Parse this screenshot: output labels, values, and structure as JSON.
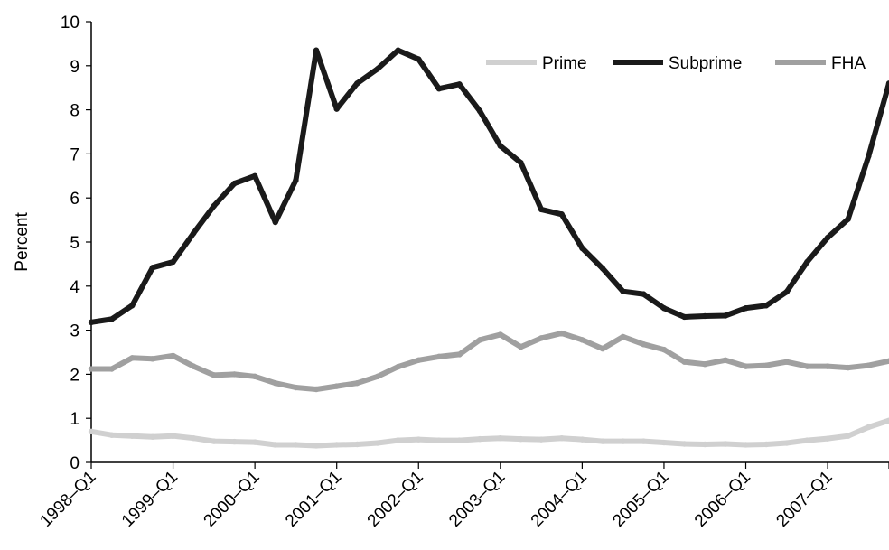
{
  "chart_data": {
    "type": "line",
    "title": "",
    "xlabel": "",
    "ylabel": "Percent",
    "ylim": [
      0,
      10
    ],
    "yticks": [
      0,
      1,
      2,
      3,
      4,
      5,
      6,
      7,
      8,
      9,
      10
    ],
    "grid": false,
    "legend_position": "top-right",
    "x": [
      "1998–Q1",
      "1998–Q2",
      "1998–Q3",
      "1998–Q4",
      "1999–Q1",
      "1999–Q2",
      "1999–Q3",
      "1999–Q4",
      "2000–Q1",
      "2000–Q2",
      "2000–Q3",
      "2000–Q4",
      "2001–Q1",
      "2001–Q2",
      "2001–Q3",
      "2001–Q4",
      "2002–Q1",
      "2002–Q2",
      "2002–Q3",
      "2002–Q4",
      "2003–Q1",
      "2003–Q2",
      "2003–Q3",
      "2003–Q4",
      "2004–Q1",
      "2004–Q2",
      "2004–Q3",
      "2004–Q4",
      "2005–Q1",
      "2005–Q2",
      "2005–Q3",
      "2005–Q4",
      "2006–Q1",
      "2006–Q2",
      "2006–Q3",
      "2006–Q4",
      "2007–Q1",
      "2007–Q2",
      "2007–Q3",
      "2007–Q4"
    ],
    "xtick_labels": [
      "1998–Q1",
      "1999–Q1",
      "2000–Q1",
      "2001–Q1",
      "2002–Q1",
      "2003–Q1",
      "2004–Q1",
      "2005–Q1",
      "2006–Q1",
      "2007–Q1"
    ],
    "series": [
      {
        "name": "Prime",
        "color": "#d0d0d0",
        "values": [
          0.7,
          0.62,
          0.6,
          0.58,
          0.6,
          0.55,
          0.48,
          0.47,
          0.46,
          0.4,
          0.4,
          0.38,
          0.4,
          0.41,
          0.44,
          0.5,
          0.52,
          0.5,
          0.5,
          0.53,
          0.55,
          0.53,
          0.52,
          0.55,
          0.52,
          0.48,
          0.48,
          0.48,
          0.45,
          0.42,
          0.41,
          0.42,
          0.4,
          0.41,
          0.44,
          0.5,
          0.54,
          0.6,
          0.8,
          0.95
        ]
      },
      {
        "name": "Subprime",
        "color": "#1a1a1a",
        "values": [
          3.18,
          3.25,
          3.56,
          4.42,
          4.55,
          5.2,
          5.82,
          6.33,
          6.5,
          5.45,
          6.4,
          9.35,
          8.02,
          8.6,
          8.93,
          9.35,
          9.15,
          8.48,
          8.58,
          7.97,
          7.18,
          6.8,
          5.74,
          5.63,
          4.86,
          4.4,
          3.88,
          3.82,
          3.5,
          3.3,
          3.32,
          3.33,
          3.5,
          3.56,
          3.87,
          4.55,
          5.1,
          5.52,
          6.95,
          8.6
        ]
      },
      {
        "name": "FHA",
        "color": "#a0a0a0",
        "values": [
          2.12,
          2.12,
          2.37,
          2.35,
          2.42,
          2.18,
          1.98,
          2.0,
          1.95,
          1.8,
          1.7,
          1.66,
          1.73,
          1.8,
          1.95,
          2.17,
          2.32,
          2.4,
          2.45,
          2.78,
          2.9,
          2.62,
          2.82,
          2.93,
          2.78,
          2.58,
          2.85,
          2.68,
          2.56,
          2.28,
          2.23,
          2.32,
          2.18,
          2.2,
          2.28,
          2.18,
          2.18,
          2.15,
          2.2,
          2.3
        ]
      }
    ]
  }
}
